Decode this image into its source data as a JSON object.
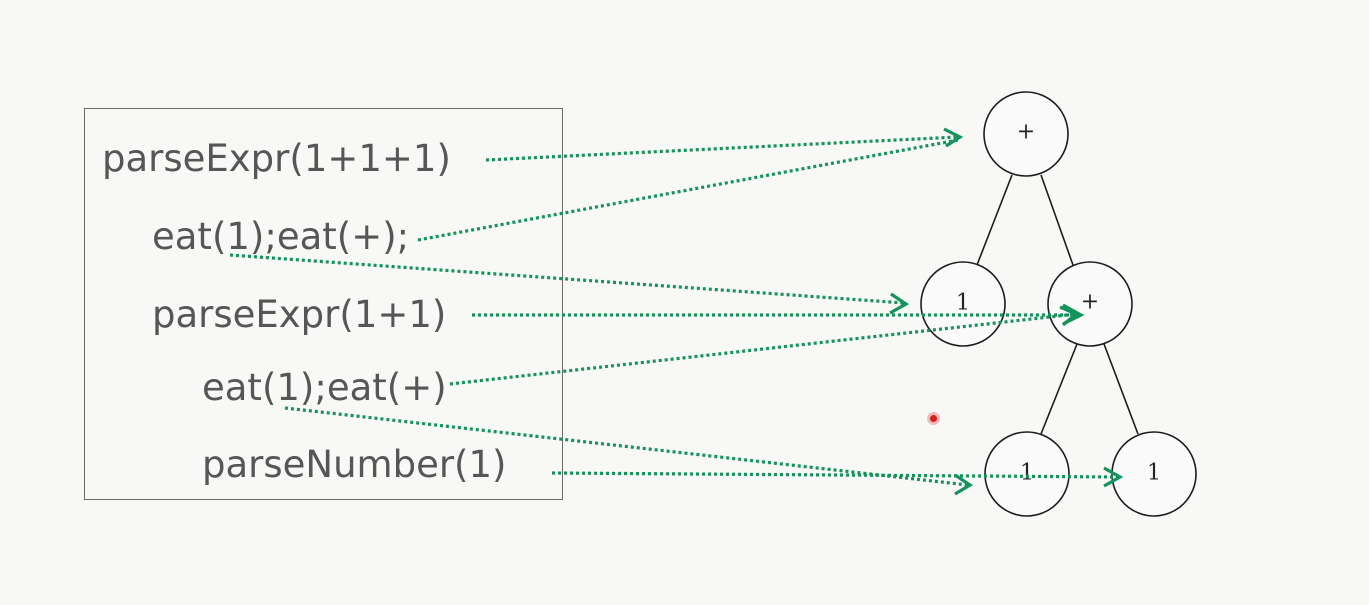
{
  "call_trace": {
    "lines": [
      "parseExpr(1+1+1)",
      "eat(1);eat(+);",
      "parseExpr(1+1)",
      "eat(1);eat(+)",
      "parseNumber(1)"
    ]
  },
  "tree": {
    "nodes": [
      {
        "id": "root-plus",
        "label": "+"
      },
      {
        "id": "left-one",
        "label": "1"
      },
      {
        "id": "mid-plus",
        "label": "+"
      },
      {
        "id": "low-left-one",
        "label": "1"
      },
      {
        "id": "low-right-one",
        "label": "1"
      }
    ],
    "edges": [
      [
        "root-plus",
        "left-one"
      ],
      [
        "root-plus",
        "mid-plus"
      ],
      [
        "mid-plus",
        "low-left-one"
      ],
      [
        "mid-plus",
        "low-right-one"
      ]
    ]
  },
  "mappings": [
    {
      "from": "parseExpr(1+1+1)",
      "to": "root-plus"
    },
    {
      "from": "eat(+) (line 2)",
      "to": "root-plus"
    },
    {
      "from": "eat(1) (line 2)",
      "to": "left-one"
    },
    {
      "from": "parseExpr(1+1)",
      "to": "mid-plus"
    },
    {
      "from": "eat(+) (line 4)",
      "to": "mid-plus"
    },
    {
      "from": "eat(1) (line 4)",
      "to": "low-left-one"
    },
    {
      "from": "parseNumber(1)",
      "to": "low-right-one"
    }
  ],
  "colors": {
    "arrow": "#14935a",
    "text": "#565656",
    "box_border": "#6b6b6b",
    "node_stroke": "#1d1d1d",
    "cursor": "#d21f1f"
  }
}
